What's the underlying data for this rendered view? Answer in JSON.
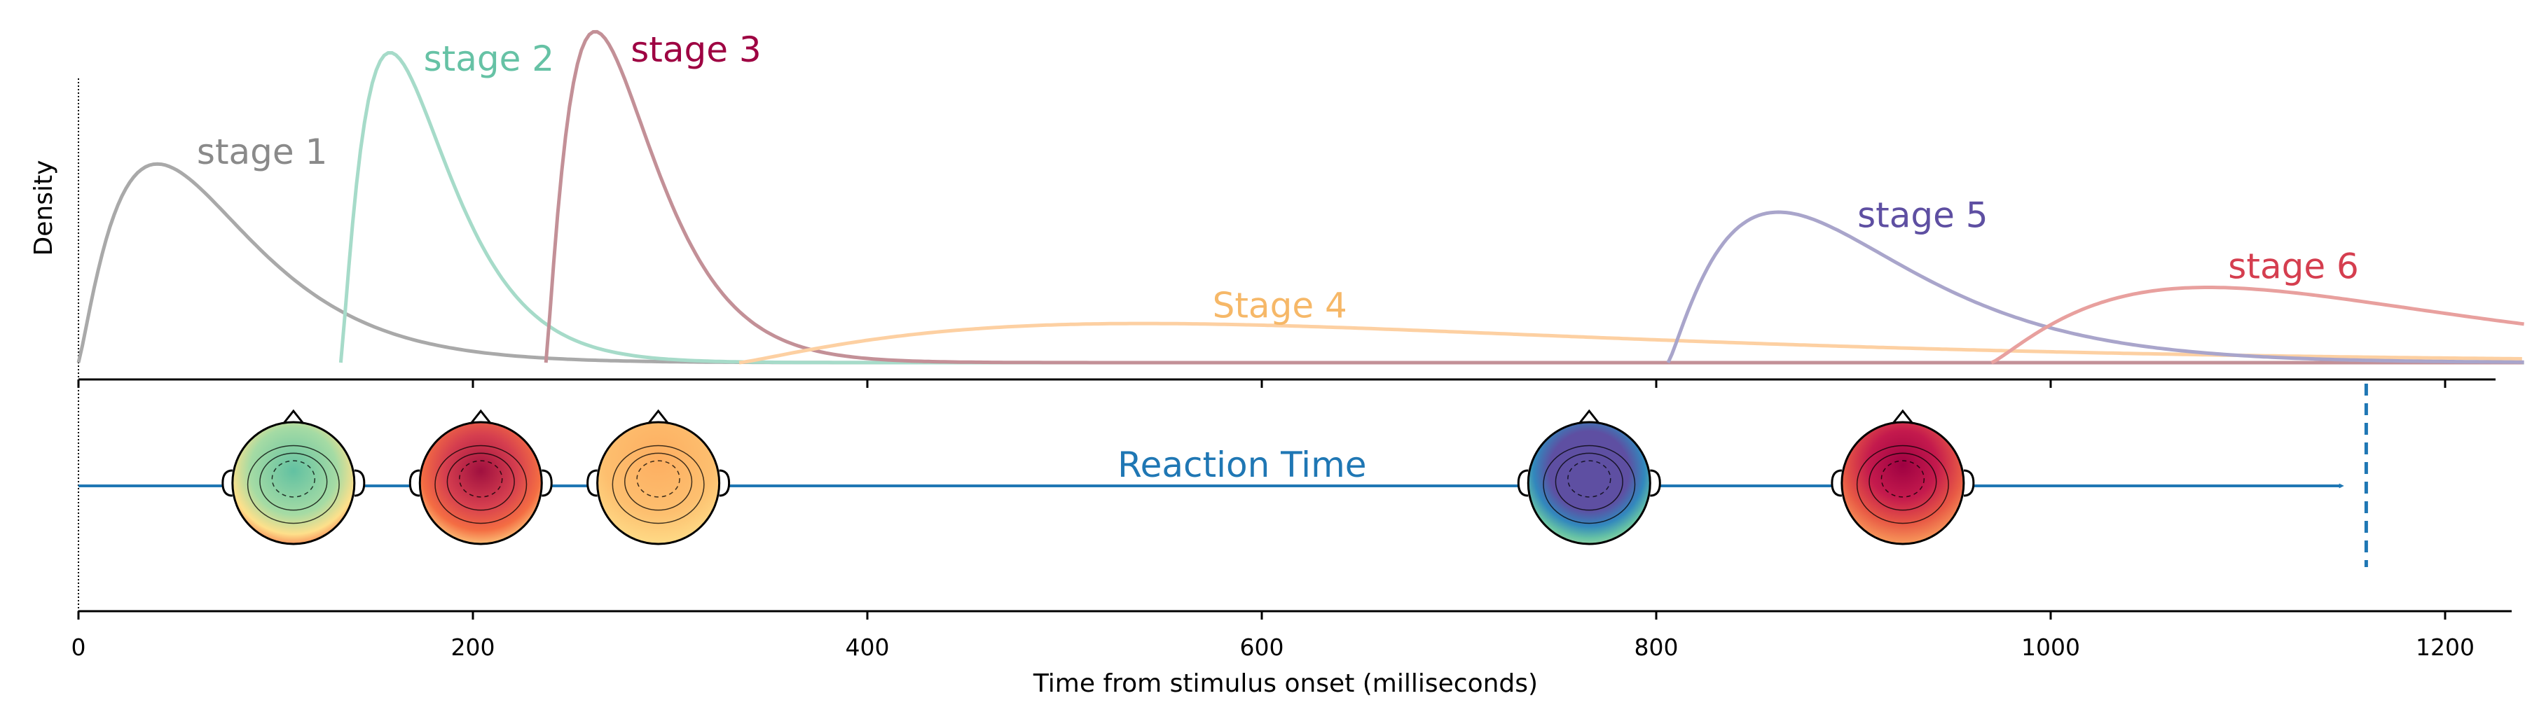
{
  "chart_data": {
    "type": "line",
    "xlabel": "Time from stimulus onset (milliseconds)",
    "ylabel": "Density",
    "xlim": [
      0,
      1240
    ],
    "xticks": [
      0,
      200,
      400,
      600,
      800,
      1000,
      1200
    ],
    "series": [
      {
        "name": "stage 1",
        "color": "#a9a9a9",
        "label_color": "#8a8a8a",
        "start": 0,
        "peak": 40,
        "end": 1240,
        "peak_density": 0.66,
        "label_at": [
          60,
          0.66
        ]
      },
      {
        "name": "stage 2",
        "color": "#a6dbc9",
        "label_color": "#66c2a5",
        "start": 133,
        "peak": 158,
        "end": 1240,
        "peak_density": 1.03,
        "label_at": [
          175,
          0.97
        ]
      },
      {
        "name": "stage 3",
        "color": "#c39097",
        "label_color": "#9e0142",
        "start": 237,
        "peak": 262,
        "end": 1240,
        "peak_density": 1.1,
        "label_at": [
          280,
          1.0
        ]
      },
      {
        "name": "Stage 4",
        "color": "#fdd0a2",
        "label_color": "#f6b868",
        "start": 335,
        "peak": 540,
        "end": 1240,
        "peak_density": 0.13,
        "label_at": [
          575,
          0.15
        ]
      },
      {
        "name": "stage 5",
        "color": "#a9a5cb",
        "label_color": "#5e4fa2",
        "start": 806,
        "peak": 862,
        "end": 1240,
        "peak_density": 0.5,
        "label_at": [
          902,
          0.45
        ]
      },
      {
        "name": "stage 6",
        "color": "#e8a09e",
        "label_color": "#d53e4f",
        "start": 970,
        "peak": 1080,
        "end": 1240,
        "peak_density": 0.25,
        "label_at": [
          1090,
          0.28
        ]
      }
    ],
    "reaction_time": {
      "label": "Reaction Time",
      "value": 1160,
      "color": "#1f77b4"
    },
    "topomaps": [
      {
        "time": 109,
        "theme": "green"
      },
      {
        "time": 204,
        "theme": "red"
      },
      {
        "time": 294,
        "theme": "orange"
      },
      {
        "time": 766,
        "theme": "blue"
      },
      {
        "time": 925,
        "theme": "darkred"
      }
    ]
  }
}
